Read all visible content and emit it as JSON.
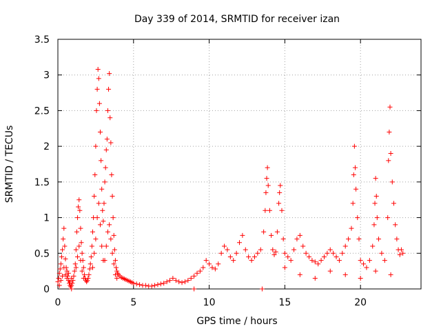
{
  "chart_data": {
    "type": "scatter",
    "title": "Day 339 of 2014, SRMTID for receiver izan",
    "xlabel": "GPS time / hours",
    "ylabel": "SRMTID / TECUs",
    "xlim": [
      0,
      24
    ],
    "ylim": [
      0,
      3.5
    ],
    "xticks": [
      0,
      5,
      10,
      15,
      20
    ],
    "xtick_labels": [
      "0",
      "5",
      "10",
      "15",
      "20"
    ],
    "yticks": [
      0,
      0.5,
      1,
      1.5,
      2,
      2.5,
      3,
      3.5
    ],
    "ytick_labels": [
      "0",
      "0.5",
      "1",
      "1.5",
      "2",
      "2.5",
      "3",
      "3.5"
    ],
    "grid": true,
    "marker": "+",
    "series": [
      {
        "name": "SRMTID",
        "color": "#ff0000",
        "points": [
          [
            0.0,
            0.1
          ],
          [
            0.05,
            0.15
          ],
          [
            0.1,
            0.22
          ],
          [
            0.15,
            0.28
          ],
          [
            0.2,
            0.35
          ],
          [
            0.25,
            0.45
          ],
          [
            0.3,
            0.55
          ],
          [
            0.35,
            0.7
          ],
          [
            0.4,
            0.85
          ],
          [
            0.45,
            0.6
          ],
          [
            0.5,
            0.42
          ],
          [
            0.55,
            0.3
          ],
          [
            0.6,
            0.25
          ],
          [
            0.65,
            0.18
          ],
          [
            0.7,
            0.12
          ],
          [
            0.75,
            0.08
          ],
          [
            0.8,
            0.05
          ],
          [
            0.85,
            0.03
          ],
          [
            0.9,
            0.05
          ],
          [
            0.95,
            0.08
          ],
          [
            0.1,
            0.05
          ],
          [
            0.2,
            0.12
          ],
          [
            0.3,
            0.18
          ],
          [
            0.4,
            0.3
          ],
          [
            0.5,
            0.2
          ],
          [
            0.6,
            0.15
          ],
          [
            0.7,
            0.22
          ],
          [
            0.8,
            0.1
          ],
          [
            0.9,
            0.15
          ],
          [
            1.0,
            0.12
          ],
          [
            1.05,
            0.18
          ],
          [
            1.1,
            0.25
          ],
          [
            1.15,
            0.35
          ],
          [
            1.2,
            0.55
          ],
          [
            1.25,
            0.8
          ],
          [
            1.3,
            1.0
          ],
          [
            1.35,
            1.15
          ],
          [
            1.4,
            1.25
          ],
          [
            1.45,
            1.1
          ],
          [
            1.5,
            0.85
          ],
          [
            1.55,
            0.65
          ],
          [
            1.6,
            0.5
          ],
          [
            1.65,
            0.4
          ],
          [
            1.7,
            0.3
          ],
          [
            1.75,
            0.2
          ],
          [
            1.8,
            0.15
          ],
          [
            1.85,
            0.12
          ],
          [
            1.9,
            0.1
          ],
          [
            1.95,
            0.12
          ],
          [
            1.2,
            0.3
          ],
          [
            1.3,
            0.45
          ],
          [
            1.4,
            0.6
          ],
          [
            1.5,
            0.4
          ],
          [
            1.6,
            0.25
          ],
          [
            1.7,
            0.15
          ],
          [
            2.0,
            0.15
          ],
          [
            2.05,
            0.2
          ],
          [
            2.1,
            0.28
          ],
          [
            2.15,
            0.35
          ],
          [
            2.2,
            0.45
          ],
          [
            2.25,
            0.6
          ],
          [
            2.3,
            0.8
          ],
          [
            2.35,
            1.0
          ],
          [
            2.4,
            1.3
          ],
          [
            2.45,
            1.6
          ],
          [
            2.5,
            2.0
          ],
          [
            2.55,
            2.5
          ],
          [
            2.6,
            2.8
          ],
          [
            2.65,
            3.08
          ],
          [
            2.7,
            2.95
          ],
          [
            2.75,
            2.6
          ],
          [
            2.8,
            2.2
          ],
          [
            2.85,
            1.8
          ],
          [
            2.9,
            1.4
          ],
          [
            2.95,
            1.1
          ],
          [
            2.3,
            0.3
          ],
          [
            2.4,
            0.5
          ],
          [
            2.5,
            0.7
          ],
          [
            2.6,
            1.0
          ],
          [
            2.7,
            1.2
          ],
          [
            2.8,
            0.9
          ],
          [
            2.9,
            0.6
          ],
          [
            3.0,
            0.4
          ],
          [
            3.0,
            0.95
          ],
          [
            3.05,
            1.2
          ],
          [
            3.1,
            1.5
          ],
          [
            3.15,
            1.7
          ],
          [
            3.2,
            1.95
          ],
          [
            3.25,
            2.1
          ],
          [
            3.3,
            2.5
          ],
          [
            3.35,
            2.8
          ],
          [
            3.4,
            3.02
          ],
          [
            3.45,
            2.4
          ],
          [
            3.5,
            2.05
          ],
          [
            3.55,
            1.6
          ],
          [
            3.6,
            1.3
          ],
          [
            3.65,
            1.0
          ],
          [
            3.7,
            0.75
          ],
          [
            3.75,
            0.55
          ],
          [
            3.8,
            0.4
          ],
          [
            3.85,
            0.3
          ],
          [
            3.9,
            0.25
          ],
          [
            3.95,
            0.22
          ],
          [
            3.1,
            0.4
          ],
          [
            3.2,
            0.6
          ],
          [
            3.3,
            0.8
          ],
          [
            3.4,
            0.9
          ],
          [
            3.5,
            0.7
          ],
          [
            3.6,
            0.5
          ],
          [
            3.7,
            0.35
          ],
          [
            3.8,
            0.2
          ],
          [
            3.9,
            0.15
          ],
          [
            4.0,
            0.2
          ],
          [
            4.1,
            0.18
          ],
          [
            4.2,
            0.16
          ],
          [
            4.3,
            0.15
          ],
          [
            4.4,
            0.14
          ],
          [
            4.5,
            0.13
          ],
          [
            4.6,
            0.12
          ],
          [
            4.7,
            0.11
          ],
          [
            4.8,
            0.1
          ],
          [
            4.9,
            0.09
          ],
          [
            5.0,
            0.08
          ],
          [
            5.2,
            0.07
          ],
          [
            5.4,
            0.06
          ],
          [
            5.6,
            0.05
          ],
          [
            5.8,
            0.05
          ],
          [
            6.0,
            0.04
          ],
          [
            6.2,
            0.04
          ],
          [
            6.4,
            0.05
          ],
          [
            6.6,
            0.06
          ],
          [
            6.8,
            0.07
          ],
          [
            7.0,
            0.08
          ],
          [
            7.2,
            0.1
          ],
          [
            7.4,
            0.12
          ],
          [
            7.6,
            0.15
          ],
          [
            7.8,
            0.12
          ],
          [
            8.0,
            0.1
          ],
          [
            8.2,
            0.09
          ],
          [
            8.4,
            0.1
          ],
          [
            8.6,
            0.12
          ],
          [
            8.8,
            0.15
          ],
          [
            9.0,
            0.18
          ],
          [
            9.2,
            0.22
          ],
          [
            9.4,
            0.25
          ],
          [
            9.6,
            0.3
          ],
          [
            9.8,
            0.4
          ],
          [
            10.0,
            0.35
          ],
          [
            10.2,
            0.3
          ],
          [
            10.4,
            0.28
          ],
          [
            10.6,
            0.35
          ],
          [
            10.8,
            0.5
          ],
          [
            11.0,
            0.6
          ],
          [
            11.2,
            0.55
          ],
          [
            11.4,
            0.45
          ],
          [
            11.6,
            0.4
          ],
          [
            11.8,
            0.5
          ],
          [
            12.0,
            0.65
          ],
          [
            12.2,
            0.75
          ],
          [
            12.4,
            0.55
          ],
          [
            12.6,
            0.45
          ],
          [
            12.8,
            0.4
          ],
          [
            13.0,
            0.45
          ],
          [
            13.2,
            0.5
          ],
          [
            13.4,
            0.55
          ],
          [
            13.6,
            0.8
          ],
          [
            13.7,
            1.1
          ],
          [
            13.75,
            1.35
          ],
          [
            13.8,
            1.55
          ],
          [
            13.85,
            1.7
          ],
          [
            13.9,
            1.45
          ],
          [
            14.0,
            1.1
          ],
          [
            14.1,
            0.75
          ],
          [
            14.2,
            0.55
          ],
          [
            14.3,
            0.48
          ],
          [
            14.4,
            0.52
          ],
          [
            14.5,
            0.8
          ],
          [
            14.6,
            1.2
          ],
          [
            14.65,
            1.35
          ],
          [
            14.7,
            1.45
          ],
          [
            14.8,
            1.1
          ],
          [
            14.9,
            0.7
          ],
          [
            15.0,
            0.5
          ],
          [
            15.2,
            0.45
          ],
          [
            15.4,
            0.4
          ],
          [
            15.6,
            0.55
          ],
          [
            15.8,
            0.7
          ],
          [
            16.0,
            0.75
          ],
          [
            16.2,
            0.6
          ],
          [
            16.4,
            0.5
          ],
          [
            16.6,
            0.45
          ],
          [
            16.8,
            0.4
          ],
          [
            17.0,
            0.38
          ],
          [
            17.2,
            0.35
          ],
          [
            17.4,
            0.4
          ],
          [
            17.6,
            0.45
          ],
          [
            17.8,
            0.5
          ],
          [
            18.0,
            0.55
          ],
          [
            18.2,
            0.5
          ],
          [
            18.4,
            0.45
          ],
          [
            18.6,
            0.4
          ],
          [
            18.8,
            0.5
          ],
          [
            19.0,
            0.6
          ],
          [
            19.2,
            0.7
          ],
          [
            19.4,
            0.85
          ],
          [
            19.5,
            1.2
          ],
          [
            19.55,
            1.6
          ],
          [
            19.6,
            2.0
          ],
          [
            19.65,
            1.7
          ],
          [
            19.7,
            1.4
          ],
          [
            19.8,
            1.0
          ],
          [
            19.9,
            0.7
          ],
          [
            20.0,
            0.4
          ],
          [
            20.2,
            0.35
          ],
          [
            20.4,
            0.3
          ],
          [
            20.6,
            0.4
          ],
          [
            20.8,
            0.6
          ],
          [
            20.9,
            0.9
          ],
          [
            20.95,
            1.2
          ],
          [
            21.0,
            1.55
          ],
          [
            21.05,
            1.3
          ],
          [
            21.1,
            1.0
          ],
          [
            21.2,
            0.7
          ],
          [
            21.4,
            0.5
          ],
          [
            21.6,
            0.4
          ],
          [
            21.8,
            1.0
          ],
          [
            21.85,
            1.8
          ],
          [
            21.9,
            2.2
          ],
          [
            21.95,
            2.55
          ],
          [
            22.0,
            1.9
          ],
          [
            22.1,
            1.5
          ],
          [
            22.2,
            1.2
          ],
          [
            22.3,
            0.9
          ],
          [
            22.4,
            0.7
          ],
          [
            22.5,
            0.55
          ],
          [
            22.6,
            0.48
          ],
          [
            22.7,
            0.55
          ],
          [
            22.8,
            0.5
          ],
          [
            15.0,
            0.3
          ],
          [
            16.0,
            0.2
          ],
          [
            17.0,
            0.15
          ],
          [
            18.0,
            0.25
          ],
          [
            19.0,
            0.2
          ],
          [
            20.0,
            0.15
          ],
          [
            21.0,
            0.25
          ],
          [
            22.0,
            0.2
          ],
          [
            13.5,
            0.0
          ],
          [
            9.0,
            0.0
          ],
          [
            0.9,
            0.0
          ]
        ]
      }
    ]
  }
}
